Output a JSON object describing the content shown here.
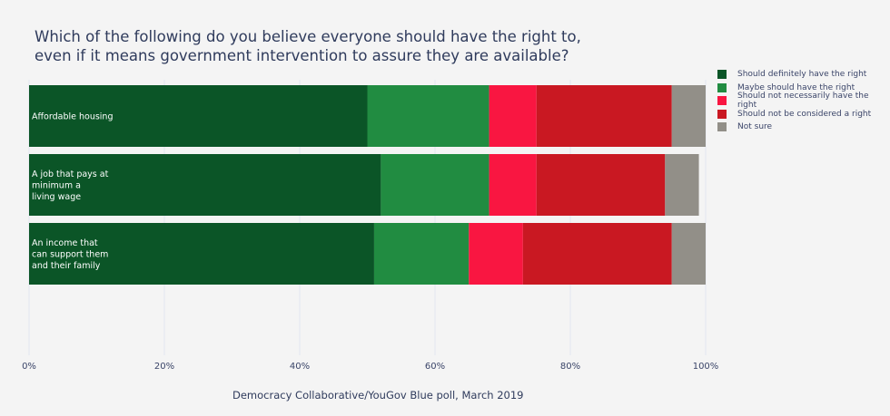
{
  "chart_data": {
    "type": "bar",
    "orientation": "horizontal",
    "stacked": true,
    "title": [
      "Which of the following do you believe everyone should have the right to,",
      "even if it means government intervention to assure they are available?"
    ],
    "categories": [
      [
        "Affordable housing"
      ],
      [
        "A job that pays at",
        "minimum a",
        "living wage"
      ],
      [
        "An income that",
        "can support them",
        "and their family"
      ]
    ],
    "series": [
      {
        "name": "Should definitely have the right",
        "color": "#0b5527",
        "values": [
          50,
          52,
          51
        ]
      },
      {
        "name": "Maybe should have the right",
        "color": "#218c41",
        "values": [
          18,
          16,
          14
        ]
      },
      {
        "name": "Should not necessarily have the right",
        "color": "#f91641",
        "values": [
          7,
          7,
          8
        ]
      },
      {
        "name": "Should not be considered a right",
        "color": "#c91822",
        "values": [
          20,
          19,
          22
        ]
      },
      {
        "name": "Not sure",
        "color": "#928f88",
        "values": [
          5,
          5,
          5
        ]
      }
    ],
    "xlim": [
      0,
      100
    ],
    "xticks": [
      "0%",
      "20%",
      "40%",
      "60%",
      "80%",
      "100%"
    ],
    "grid": true,
    "legend": "right",
    "source": "Democracy Collaborative/YouGov Blue poll, March 2019"
  }
}
